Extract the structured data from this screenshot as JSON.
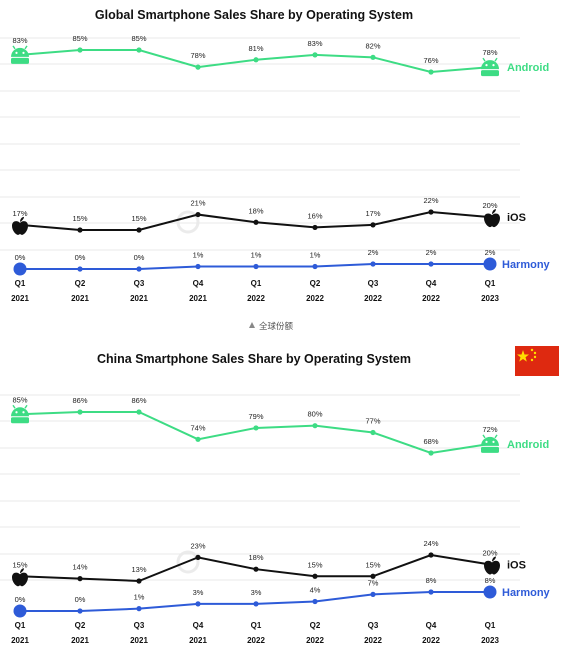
{
  "caption": "全球份额",
  "colors": {
    "android": "#3ddc84",
    "ios": "#111111",
    "harmony": "#2e5bd8",
    "flag_red": "#de2910",
    "flag_star": "#ffde00",
    "grid": "#e8e8e8"
  },
  "chart_data": [
    {
      "type": "line",
      "title": "Global Smartphone Sales Share by Operating System",
      "categories": [
        "Q1 2021",
        "Q2 2021",
        "Q3 2021",
        "Q4 2021",
        "Q1 2022",
        "Q2 2022",
        "Q3 2022",
        "Q4 2022",
        "Q1 2023"
      ],
      "x_tick_top": [
        "Q1",
        "Q2",
        "Q3",
        "Q4",
        "Q1",
        "Q2",
        "Q3",
        "Q4",
        "Q1"
      ],
      "x_tick_bottom": [
        "2021",
        "2021",
        "2021",
        "2021",
        "2022",
        "2022",
        "2022",
        "2022",
        "2023"
      ],
      "series": [
        {
          "name": "Android",
          "key": "android",
          "icon": "android-icon",
          "values": [
            83,
            85,
            85,
            78,
            81,
            83,
            82,
            76,
            78
          ],
          "labels": [
            "83%",
            "85%",
            "85%",
            "78%",
            "81%",
            "83%",
            "82%",
            "76%",
            "78%"
          ]
        },
        {
          "name": "iOS",
          "key": "ios",
          "icon": "apple-icon",
          "values": [
            17,
            15,
            15,
            21,
            18,
            16,
            17,
            22,
            20
          ],
          "labels": [
            "17%",
            "15%",
            "15%",
            "21%",
            "18%",
            "16%",
            "17%",
            "22%",
            "20%"
          ]
        },
        {
          "name": "Harmony",
          "key": "harmony",
          "icon": "harmony-icon",
          "values": [
            0,
            0,
            0,
            1,
            1,
            1,
            2,
            2,
            2
          ],
          "labels": [
            "0%",
            "0%",
            "0%",
            "1%",
            "1%",
            "1%",
            "2%",
            "2%",
            "2%"
          ]
        }
      ],
      "grid": true
    },
    {
      "type": "line",
      "title": "China Smartphone Sales Share by Operating System",
      "flag": "china-flag",
      "categories": [
        "Q1 2021",
        "Q2 2021",
        "Q3 2021",
        "Q4 2021",
        "Q1 2022",
        "Q2 2022",
        "Q3 2022",
        "Q4 2022",
        "Q1 2023"
      ],
      "x_tick_top": [
        "Q1",
        "Q2",
        "Q3",
        "Q4",
        "Q1",
        "Q2",
        "Q3",
        "Q4",
        "Q1"
      ],
      "x_tick_bottom": [
        "2021",
        "2021",
        "2021",
        "2021",
        "2022",
        "2022",
        "2022",
        "2022",
        "2023"
      ],
      "series": [
        {
          "name": "Android",
          "key": "android",
          "icon": "android-icon",
          "values": [
            85,
            86,
            86,
            74,
            79,
            80,
            77,
            68,
            72
          ],
          "labels": [
            "85%",
            "86%",
            "86%",
            "74%",
            "79%",
            "80%",
            "77%",
            "68%",
            "72%"
          ]
        },
        {
          "name": "iOS",
          "key": "ios",
          "icon": "apple-icon",
          "values": [
            15,
            14,
            13,
            23,
            18,
            15,
            15,
            24,
            20
          ],
          "labels": [
            "15%",
            "14%",
            "13%",
            "23%",
            "18%",
            "15%",
            "15%",
            "24%",
            "20%"
          ]
        },
        {
          "name": "Harmony",
          "key": "harmony",
          "icon": "harmony-icon",
          "values": [
            0,
            0,
            1,
            3,
            3,
            4,
            7,
            8,
            8
          ],
          "labels": [
            "0%",
            "0%",
            "1%",
            "3%",
            "3%",
            "4%",
            "7%",
            "8%",
            "8%"
          ]
        }
      ],
      "grid": true
    }
  ]
}
